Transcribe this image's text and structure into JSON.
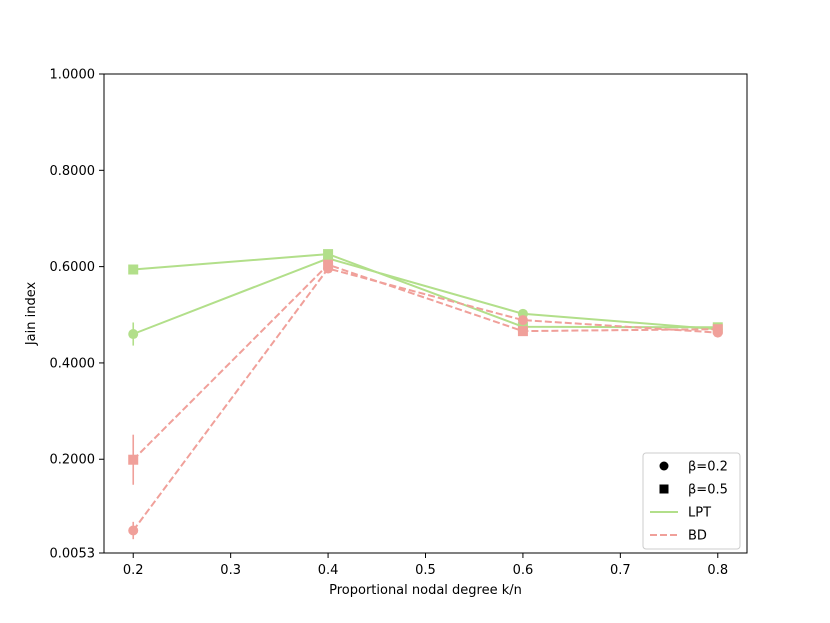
{
  "chart_data": {
    "type": "line",
    "title": "",
    "xlabel": "Proportional nodal degree k/n",
    "ylabel": "Jain index",
    "xlim": [
      0.17,
      0.83
    ],
    "ylim": [
      0.0053,
      1.0
    ],
    "x_ticks": [
      {
        "value": 0.2,
        "label": "0.2"
      },
      {
        "value": 0.3,
        "label": "0.3"
      },
      {
        "value": 0.4,
        "label": "0.4"
      },
      {
        "value": 0.5,
        "label": "0.5"
      },
      {
        "value": 0.6,
        "label": "0.6"
      },
      {
        "value": 0.7,
        "label": "0.7"
      },
      {
        "value": 0.8,
        "label": "0.8"
      }
    ],
    "y_ticks": [
      {
        "value": 0.0053,
        "label": "0.0053"
      },
      {
        "value": 0.2,
        "label": "0.2000"
      },
      {
        "value": 0.4,
        "label": "0.4000"
      },
      {
        "value": 0.6,
        "label": "0.6000"
      },
      {
        "value": 0.8,
        "label": "0.8000"
      },
      {
        "value": 1.0,
        "label": "1.0000"
      }
    ],
    "grid": false,
    "legend_position": "lower-right",
    "legend": [
      {
        "label": "β=0.2",
        "kind": "marker",
        "marker": "circle"
      },
      {
        "label": "β=0.5",
        "kind": "marker",
        "marker": "square"
      },
      {
        "label": "LPT",
        "kind": "line",
        "method": "LPT"
      },
      {
        "label": "BD",
        "kind": "line",
        "method": "BD"
      }
    ],
    "colors": {
      "LPT": "#b2df8a",
      "BD": "#f0a09a"
    },
    "series": [
      {
        "method": "LPT",
        "beta": "0.2",
        "marker": "circle",
        "line": "solid",
        "x": [
          0.2,
          0.4,
          0.6,
          0.8
        ],
        "y": [
          0.46,
          0.617,
          0.502,
          0.47
        ],
        "err": [
          0.024,
          0.008,
          0.006,
          0.006
        ]
      },
      {
        "method": "LPT",
        "beta": "0.5",
        "marker": "square",
        "line": "solid",
        "x": [
          0.2,
          0.4,
          0.6,
          0.8
        ],
        "y": [
          0.594,
          0.626,
          0.475,
          0.474
        ],
        "err": [
          0.006,
          0.006,
          0.006,
          0.006
        ]
      },
      {
        "method": "BD",
        "beta": "0.2",
        "marker": "circle",
        "line": "dashed",
        "x": [
          0.2,
          0.4,
          0.6,
          0.8
        ],
        "y": [
          0.052,
          0.596,
          0.489,
          0.463
        ],
        "err": [
          0.018,
          0.008,
          0.008,
          0.006
        ]
      },
      {
        "method": "BD",
        "beta": "0.5",
        "marker": "square",
        "line": "dashed",
        "x": [
          0.2,
          0.4,
          0.6,
          0.8
        ],
        "y": [
          0.199,
          0.604,
          0.466,
          0.47
        ],
        "err": [
          0.052,
          0.008,
          0.006,
          0.006
        ]
      }
    ]
  }
}
